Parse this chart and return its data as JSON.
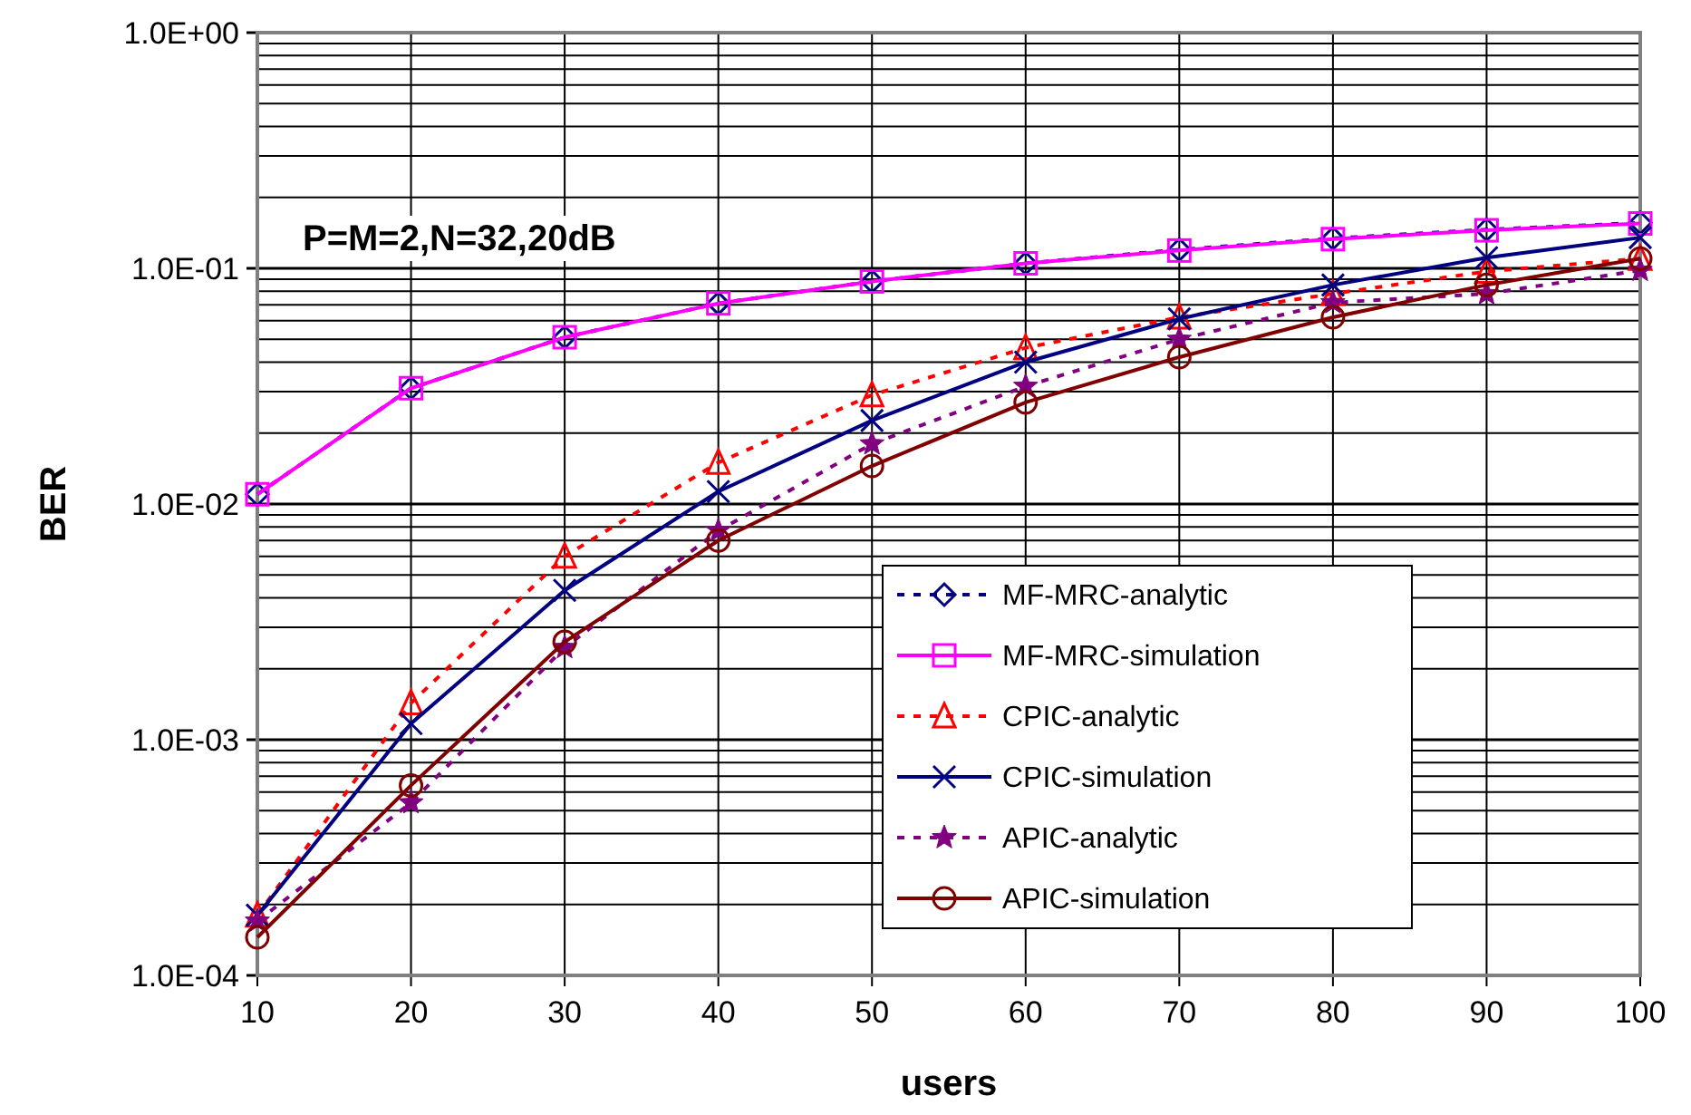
{
  "chart_data": {
    "type": "line",
    "xlabel": "users",
    "ylabel": "BER",
    "log": "y",
    "grid": true,
    "legend": "bottom right",
    "annotations": [
      "P=M=2,N=32,20dB"
    ],
    "x": [
      10,
      20,
      30,
      40,
      50,
      60,
      70,
      80,
      90,
      100
    ],
    "xlim": [
      10,
      100
    ],
    "xticks": [
      10,
      20,
      30,
      40,
      50,
      60,
      70,
      80,
      90,
      100
    ],
    "ylim": [
      0.0001,
      1
    ],
    "yticks": [
      {
        "value": 0.0001,
        "label": "1.0E-04"
      },
      {
        "value": 0.001,
        "label": "1.0E-03"
      },
      {
        "value": 0.01,
        "label": "1.0E-02"
      },
      {
        "value": 0.1,
        "label": "1.0E-01"
      },
      {
        "value": 1,
        "label": "1.0E+00"
      }
    ],
    "series": [
      {
        "name": "MF-MRC-analytic",
        "color": "#000080",
        "marker": "diamond",
        "line_style": "dashed",
        "values": [
          0.011,
          0.031,
          0.051,
          0.071,
          0.088,
          0.105,
          0.12,
          0.134,
          0.146,
          0.156
        ]
      },
      {
        "name": "MF-MRC-simulation",
        "color": "#ff00ff",
        "marker": "square",
        "line_style": "solid",
        "values": [
          0.011,
          0.031,
          0.051,
          0.071,
          0.088,
          0.105,
          0.119,
          0.133,
          0.145,
          0.155
        ]
      },
      {
        "name": "CPIC-analytic",
        "color": "#ff0000",
        "marker": "triangle",
        "line_style": "dashed",
        "values": [
          0.00018,
          0.00143,
          0.006,
          0.015,
          0.029,
          0.046,
          0.062,
          0.078,
          0.097,
          0.11
        ]
      },
      {
        "name": "CPIC-simulation",
        "color": "#000080",
        "marker": "cross",
        "line_style": "solid",
        "values": [
          0.00018,
          0.00117,
          0.0043,
          0.0113,
          0.0226,
          0.04,
          0.061,
          0.085,
          0.111,
          0.135
        ]
      },
      {
        "name": "APIC-analytic",
        "color": "#800080",
        "marker": "star",
        "line_style": "dashed",
        "values": [
          0.00017,
          0.00054,
          0.00246,
          0.0077,
          0.018,
          0.0316,
          0.05,
          0.0715,
          0.078,
          0.098
        ]
      },
      {
        "name": "APIC-simulation",
        "color": "#800000",
        "marker": "circle",
        "line_style": "solid",
        "values": [
          0.000145,
          0.00064,
          0.0026,
          0.007,
          0.0145,
          0.027,
          0.042,
          0.062,
          0.085,
          0.11
        ]
      }
    ]
  }
}
